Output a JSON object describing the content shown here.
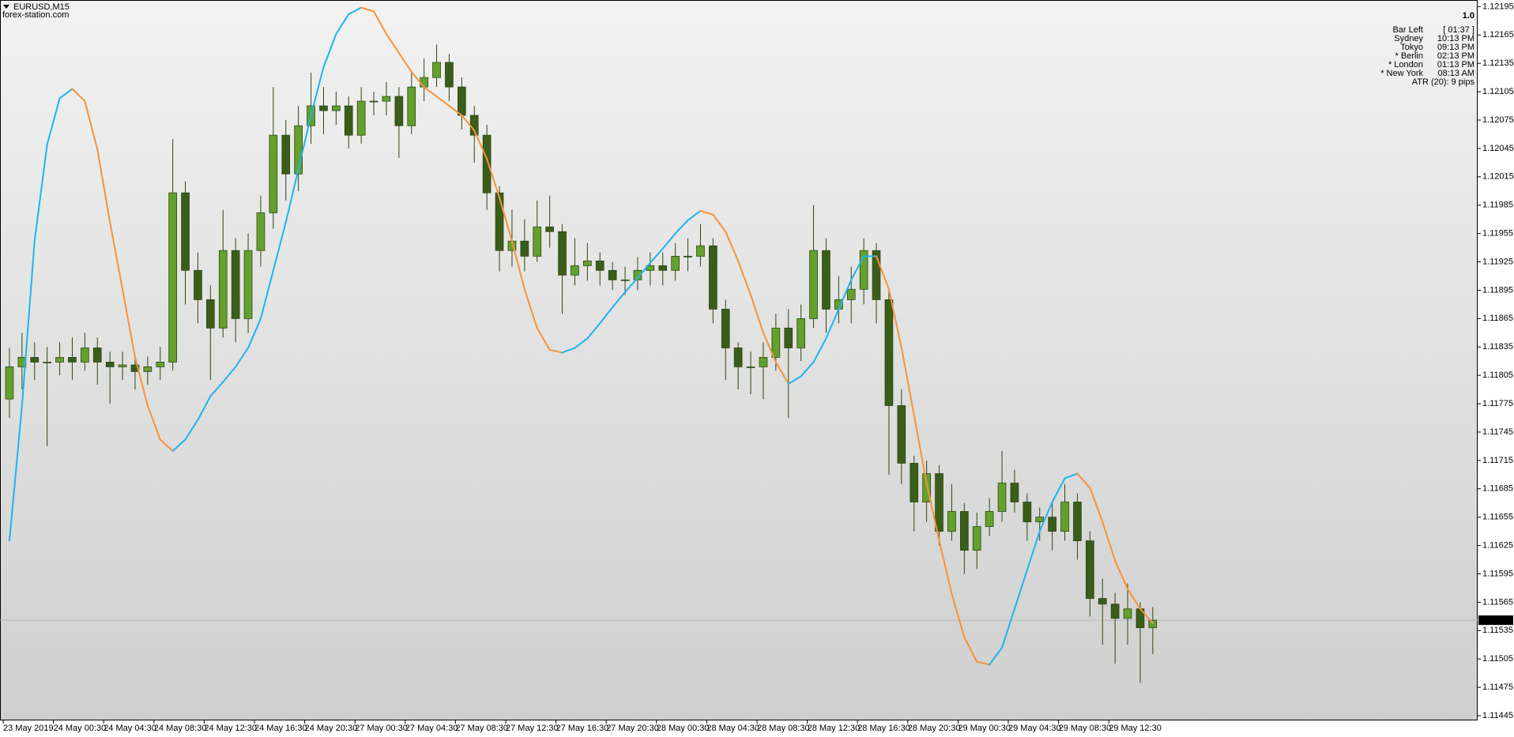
{
  "chart_data": {
    "type": "candlestick",
    "symbol": "EURUSD,M15",
    "watermark": "forex-station.com",
    "categories": [
      "23 May 2019",
      "24 May 00:30",
      "24 May 04:30",
      "24 May 08:30",
      "24 May 12:30",
      "24 May 16:30",
      "24 May 20:30",
      "27 May 00:30",
      "27 May 04:30",
      "27 May 08:30",
      "27 May 12:30",
      "27 May 16:30",
      "27 May 20:30",
      "28 May 00:30",
      "28 May 04:30",
      "28 May 08:30",
      "28 May 12:30",
      "28 May 16:30",
      "28 May 20:30",
      "29 May 00:30",
      "29 May 04:30",
      "29 May 08:30",
      "29 May 12:30"
    ],
    "ylim": [
      1.1144,
      1.12202
    ],
    "yticks": [
      1.11445,
      1.11475,
      1.11505,
      1.11535,
      1.11565,
      1.11595,
      1.11625,
      1.11655,
      1.11685,
      1.11715,
      1.11745,
      1.11775,
      1.11805,
      1.11835,
      1.11865,
      1.11895,
      1.11925,
      1.11955,
      1.11985,
      1.12015,
      1.12045,
      1.12075,
      1.12105,
      1.12135,
      1.12165,
      1.12195
    ],
    "grid": false,
    "candles": {
      "up_color": "#63a12c",
      "down_color": "#3a5e19",
      "wick_color": "#2c4613",
      "open": [
        1.1178,
        1.11814,
        1.11824,
        1.11819,
        1.11819,
        1.11824,
        1.11819,
        1.11834,
        1.11819,
        1.11814,
        1.11816,
        1.11809,
        1.11814,
        1.11819,
        1.11998,
        1.11916,
        1.11885,
        1.11855,
        1.11937,
        1.11865,
        1.11937,
        1.11977,
        1.12059,
        1.12018,
        1.12069,
        1.1209,
        1.12085,
        1.1209,
        1.12059,
        1.12095,
        1.12095,
        1.121,
        1.12069,
        1.1211,
        1.1212,
        1.12136,
        1.1211,
        1.1208,
        1.12059,
        1.11998,
        1.11937,
        1.11947,
        1.11931,
        1.11962,
        1.11957,
        1.11911,
        1.11921,
        1.11926,
        1.11916,
        1.11906,
        1.11906,
        1.11916,
        1.11921,
        1.11916,
        1.11931,
        1.11931,
        1.11942,
        1.11875,
        1.11834,
        1.11814,
        1.11814,
        1.11824,
        1.11855,
        1.11834,
        1.11865,
        1.11937,
        1.11875,
        1.11885,
        1.11896,
        1.11937,
        1.11885,
        1.11773,
        1.11712,
        1.11671,
        1.11701,
        1.1164,
        1.11661,
        1.1162,
        1.11645,
        1.11661,
        1.11691,
        1.11671,
        1.1165,
        1.11655,
        1.1164,
        1.11671,
        1.1163,
        1.11569,
        1.11563,
        1.11548,
        1.11558,
        1.11538
      ],
      "high": [
        1.11834,
        1.1185,
        1.1184,
        1.11835,
        1.1184,
        1.11845,
        1.1185,
        1.11845,
        1.1183,
        1.1183,
        1.11825,
        1.11825,
        1.11835,
        1.12055,
        1.1201,
        1.11935,
        1.119,
        1.1198,
        1.1195,
        1.11955,
        1.11995,
        1.1211,
        1.12075,
        1.1209,
        1.12125,
        1.1211,
        1.12105,
        1.121,
        1.1211,
        1.12105,
        1.12115,
        1.1211,
        1.12125,
        1.1214,
        1.12155,
        1.12145,
        1.1212,
        1.1209,
        1.1207,
        1.12005,
        1.1198,
        1.1197,
        1.1199,
        1.11995,
        1.11965,
        1.1195,
        1.11945,
        1.11935,
        1.11925,
        1.1192,
        1.1193,
        1.11935,
        1.11935,
        1.11945,
        1.1195,
        1.11965,
        1.1195,
        1.11885,
        1.1184,
        1.1183,
        1.1184,
        1.1187,
        1.11875,
        1.1188,
        1.11985,
        1.1195,
        1.1191,
        1.1192,
        1.1195,
        1.11945,
        1.11895,
        1.1179,
        1.1172,
        1.11715,
        1.1171,
        1.1169,
        1.1167,
        1.1166,
        1.11675,
        1.11725,
        1.11705,
        1.1168,
        1.11665,
        1.1167,
        1.1169,
        1.1168,
        1.1164,
        1.1159,
        1.11575,
        1.11585,
        1.11565,
        1.1156
      ],
      "low": [
        1.1176,
        1.1179,
        1.118,
        1.1173,
        1.11805,
        1.118,
        1.1181,
        1.11795,
        1.11775,
        1.118,
        1.1179,
        1.11795,
        1.118,
        1.1181,
        1.1188,
        1.1186,
        1.118,
        1.11845,
        1.1184,
        1.1185,
        1.1192,
        1.1196,
        1.1199,
        1.12,
        1.1205,
        1.1206,
        1.1207,
        1.12045,
        1.1205,
        1.1208,
        1.1208,
        1.12035,
        1.1206,
        1.12095,
        1.1211,
        1.12095,
        1.12065,
        1.1203,
        1.1198,
        1.11915,
        1.1192,
        1.11915,
        1.11925,
        1.1194,
        1.1187,
        1.119,
        1.11905,
        1.119,
        1.11895,
        1.1189,
        1.11895,
        1.119,
        1.119,
        1.11905,
        1.11915,
        1.1192,
        1.1186,
        1.118,
        1.1179,
        1.11785,
        1.1178,
        1.1181,
        1.1176,
        1.1182,
        1.11855,
        1.1185,
        1.1186,
        1.1186,
        1.1188,
        1.1186,
        1.117,
        1.1169,
        1.1164,
        1.1165,
        1.11625,
        1.1163,
        1.11595,
        1.116,
        1.11635,
        1.1165,
        1.1166,
        1.1163,
        1.1163,
        1.1162,
        1.1163,
        1.1161,
        1.1155,
        1.1152,
        1.115,
        1.1152,
        1.1148,
        1.1151
      ],
      "close": [
        1.11814,
        1.11824,
        1.11819,
        1.11819,
        1.11824,
        1.11819,
        1.11834,
        1.11819,
        1.11814,
        1.11816,
        1.11809,
        1.11814,
        1.11819,
        1.11998,
        1.11916,
        1.11885,
        1.11855,
        1.11937,
        1.11865,
        1.11937,
        1.11977,
        1.12059,
        1.12018,
        1.12069,
        1.1209,
        1.12085,
        1.1209,
        1.12059,
        1.12095,
        1.12095,
        1.121,
        1.12069,
        1.1211,
        1.1212,
        1.12136,
        1.1211,
        1.1208,
        1.12059,
        1.11998,
        1.11937,
        1.11947,
        1.11931,
        1.11962,
        1.11957,
        1.11911,
        1.11921,
        1.11926,
        1.11916,
        1.11906,
        1.11906,
        1.11916,
        1.11921,
        1.11916,
        1.11931,
        1.11931,
        1.11942,
        1.11875,
        1.11834,
        1.11814,
        1.11814,
        1.11824,
        1.11855,
        1.11834,
        1.11865,
        1.11937,
        1.11875,
        1.11885,
        1.11896,
        1.11937,
        1.11885,
        1.11773,
        1.11712,
        1.11671,
        1.11701,
        1.1164,
        1.11661,
        1.1162,
        1.11645,
        1.11661,
        1.11691,
        1.11671,
        1.1165,
        1.11655,
        1.1164,
        1.11671,
        1.1163,
        1.11569,
        1.11563,
        1.11548,
        1.11558,
        1.11538,
        1.11546
      ]
    },
    "indicator": {
      "rising_color": "#1eb4ee",
      "falling_color": "#f7923a",
      "values": [
        1.1163,
        1.11773,
        1.11947,
        1.12049,
        1.12098,
        1.12108,
        1.12095,
        1.12044,
        1.11967,
        1.11896,
        1.11824,
        1.11773,
        1.11737,
        1.11725,
        1.11737,
        1.11758,
        1.11783,
        1.11798,
        1.11814,
        1.11834,
        1.11865,
        1.11916,
        1.11967,
        1.12023,
        1.1208,
        1.12131,
        1.12166,
        1.12187,
        1.12194,
        1.1219,
        1.12166,
        1.12146,
        1.12126,
        1.1211,
        1.121,
        1.1209,
        1.1208,
        1.12064,
        1.12034,
        1.11993,
        1.11947,
        1.11896,
        1.11855,
        1.11832,
        1.11829,
        1.11834,
        1.11844,
        1.1186,
        1.11877,
        1.11893,
        1.11908,
        1.11924,
        1.11939,
        1.11955,
        1.11969,
        1.11979,
        1.11975,
        1.11957,
        1.11926,
        1.1189,
        1.1185,
        1.11819,
        1.11796,
        1.11804,
        1.11819,
        1.11844,
        1.11875,
        1.11906,
        1.11931,
        1.11931,
        1.11896,
        1.11834,
        1.11763,
        1.11691,
        1.1163,
        1.11574,
        1.11528,
        1.11502,
        1.11499,
        1.11517,
        1.11558,
        1.11599,
        1.1164,
        1.11671,
        1.11696,
        1.11701,
        1.11686,
        1.1165,
        1.11609,
        1.11579,
        1.11558,
        1.11543
      ]
    },
    "current_price": 1.11546,
    "info_panel": {
      "bar_value": "1.0",
      "rows": [
        {
          "label": "Bar Left",
          "value": "[ 01:37 ]",
          "color": "#9c9c9c"
        },
        {
          "label": "Sydney",
          "value": "10:13 PM",
          "color": "#9c9c9c"
        },
        {
          "label": "Tokyo",
          "value": "09:13 PM",
          "color": "#9c9c9c"
        },
        {
          "label": "* Berlin",
          "value": "02:13 PM",
          "color": "#e00000"
        },
        {
          "label": "* London",
          "value": "01:13 PM",
          "color": "#e00000"
        },
        {
          "label": "* New York",
          "value": "08:13 AM",
          "color": "#e00000"
        }
      ],
      "atr": "ATR (20): 9 pips"
    }
  }
}
